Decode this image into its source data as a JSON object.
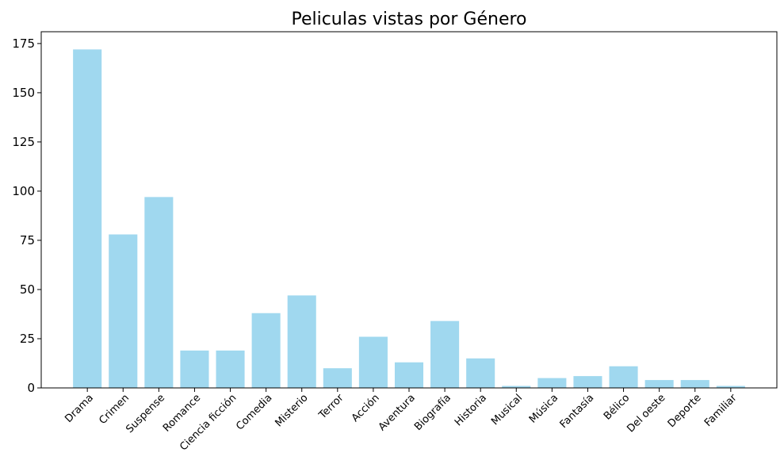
{
  "chart_data": {
    "type": "bar",
    "title": "Peliculas vistas por Género",
    "xlabel": "",
    "ylabel": "",
    "categories": [
      "Drama",
      "Crimen",
      "Suspense",
      "Romance",
      "Ciencia ficción",
      "Comedia",
      "Misterio",
      "Terror",
      "Acción",
      "Aventura",
      "Biografía",
      "Historia",
      "Musical",
      "Música",
      "Fantasía",
      "Bélico",
      "Del oeste",
      "Deporte",
      "Familiar"
    ],
    "values": [
      172,
      78,
      97,
      19,
      19,
      38,
      47,
      10,
      26,
      13,
      34,
      15,
      1,
      5,
      6,
      11,
      4,
      4,
      1
    ],
    "ylim": [
      0,
      181
    ],
    "yticks": [
      0,
      25,
      50,
      75,
      100,
      125,
      150,
      175
    ],
    "grid": false,
    "bar_color": "#A0D8EF",
    "axis_color": "#000000"
  }
}
